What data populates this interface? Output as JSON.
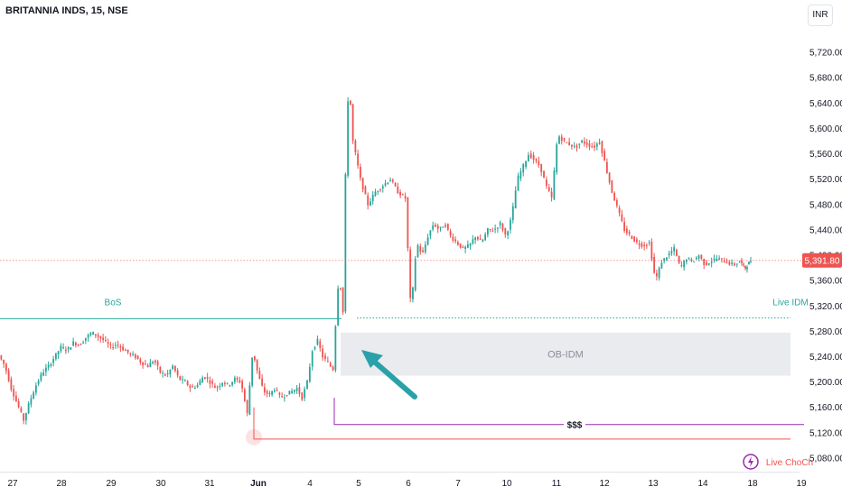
{
  "chart_data": {
    "type": "candlestick",
    "title": "BRITANNIA INDS, 15, NSE",
    "currency": "INR",
    "ylim": [
      5060,
      5760
    ],
    "y_ticks": [
      5080,
      5120,
      5160,
      5200,
      5240,
      5280,
      5320,
      5360,
      5400,
      5440,
      5480,
      5520,
      5560,
      5600,
      5640,
      5680,
      5720
    ],
    "x_ticks": [
      "27",
      "28",
      "29",
      "30",
      "31",
      "Jun",
      "4",
      "5",
      "6",
      "7",
      "10",
      "11",
      "12",
      "13",
      "14",
      "18",
      "19"
    ],
    "last_price_label": "5,391.80",
    "last_price": 5391.8,
    "close_path": [
      {
        "session": "27",
        "points": [
          5242,
          5225,
          5190,
          5165,
          5140,
          5170,
          5195,
          5215,
          5225
        ]
      },
      {
        "session": "28",
        "points": [
          5225,
          5240,
          5255,
          5250,
          5262,
          5258,
          5270,
          5278,
          5272
        ]
      },
      {
        "session": "29",
        "points": [
          5272,
          5265,
          5255,
          5260,
          5252,
          5245,
          5240,
          5230,
          5225
        ]
      },
      {
        "session": "30",
        "points": [
          5225,
          5235,
          5215,
          5210,
          5225,
          5205,
          5200,
          5190,
          5195
        ]
      },
      {
        "session": "31",
        "points": [
          5195,
          5210,
          5200,
          5190,
          5200,
          5195,
          5205,
          5200,
          5150
        ]
      },
      {
        "session": "Jun",
        "points": [
          5150,
          5250,
          5210,
          5185,
          5180,
          5190,
          5175,
          5180,
          5185,
          5190
        ]
      },
      {
        "session": "4",
        "points": [
          5190,
          5175,
          5200,
          5250,
          5265,
          5240,
          5230,
          5220
        ]
      },
      {
        "session": "4b",
        "points": [
          5220,
          5280,
          5320,
          5380,
          5340,
          5310,
          5500,
          5600,
          5690,
          5620,
          5580
        ]
      },
      {
        "session": "5",
        "points": [
          5580,
          5520,
          5480,
          5500,
          5510,
          5520,
          5500,
          5490
        ]
      },
      {
        "session": "6",
        "points": [
          5490,
          5310,
          5420,
          5400,
          5430,
          5450,
          5440,
          5450,
          5430
        ]
      },
      {
        "session": "7",
        "points": [
          5430,
          5420,
          5410,
          5415,
          5430,
          5420,
          5440,
          5440,
          5450
        ]
      },
      {
        "session": "10",
        "points": [
          5450,
          5430,
          5460,
          5520,
          5540,
          5560,
          5550,
          5540,
          5510,
          5490
        ]
      },
      {
        "session": "11",
        "points": [
          5490,
          5590,
          5580,
          5575,
          5570,
          5580,
          5575,
          5570,
          5580
        ]
      },
      {
        "session": "12",
        "points": [
          5580,
          5540,
          5500,
          5470,
          5440,
          5430,
          5420,
          5415,
          5420
        ]
      },
      {
        "session": "13",
        "points": [
          5420,
          5360,
          5390,
          5400,
          5410,
          5380,
          5395,
          5390,
          5400
        ]
      },
      {
        "session": "14",
        "points": [
          5400,
          5385,
          5390,
          5395,
          5392,
          5388,
          5385,
          5390
        ]
      },
      {
        "session": "18",
        "points": [
          5390,
          5380,
          5391.8
        ]
      }
    ]
  },
  "annotations": {
    "bos": {
      "label": "BoS",
      "price": 5300
    },
    "live_idm": {
      "label": "Live IDM",
      "price": 5301
    },
    "ob_idm": {
      "label": "OB-IDM",
      "top": 5278,
      "bottom": 5210
    },
    "liquidity": {
      "label": "$$$",
      "price": 5133
    },
    "live_choch": {
      "label": "Live ChoCh",
      "price": 5110
    },
    "colors": {
      "up": "#26a69a",
      "down": "#ef5350",
      "bos": "#26a69a",
      "choch": "#ef5350",
      "liquidity": "#9c27b0",
      "arrow": "#2aa1a8",
      "ob": "#e9ebef"
    }
  }
}
